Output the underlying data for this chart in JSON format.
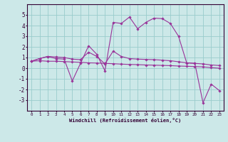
{
  "xlabel": "Windchill (Refroidissement éolien,°C)",
  "background_color": "#cce8e8",
  "line_color": "#993399",
  "grid_color": "#99cccc",
  "x_values": [
    0,
    1,
    2,
    3,
    4,
    5,
    6,
    7,
    8,
    9,
    10,
    11,
    12,
    13,
    14,
    15,
    16,
    17,
    18,
    19,
    20,
    21,
    22,
    23
  ],
  "series1": [
    0.65,
    0.9,
    1.1,
    0.9,
    0.85,
    -1.2,
    0.45,
    2.1,
    1.3,
    -0.25,
    4.3,
    4.2,
    4.8,
    3.7,
    4.3,
    4.7,
    4.65,
    4.2,
    3.0,
    0.5,
    0.45,
    -3.25,
    -1.5,
    -2.1
  ],
  "series2": [
    0.65,
    0.9,
    1.1,
    1.05,
    1.0,
    0.85,
    0.8,
    1.5,
    1.1,
    0.4,
    1.6,
    1.1,
    0.9,
    0.85,
    0.82,
    0.8,
    0.75,
    0.7,
    0.6,
    0.5,
    0.45,
    0.4,
    0.3,
    0.25
  ],
  "series3": [
    0.65,
    0.7,
    0.65,
    0.65,
    0.62,
    0.58,
    0.55,
    0.5,
    0.48,
    0.45,
    0.42,
    0.38,
    0.35,
    0.33,
    0.3,
    0.28,
    0.26,
    0.24,
    0.2,
    0.18,
    0.15,
    0.12,
    0.05,
    0.0
  ],
  "ylim": [
    -4,
    6
  ],
  "xlim": [
    -0.5,
    23.5
  ],
  "yticks": [
    -3,
    -2,
    -1,
    0,
    1,
    2,
    3,
    4,
    5
  ],
  "xticks": [
    0,
    1,
    2,
    3,
    4,
    5,
    6,
    7,
    8,
    9,
    10,
    11,
    12,
    13,
    14,
    15,
    16,
    17,
    18,
    19,
    20,
    21,
    22,
    23
  ]
}
